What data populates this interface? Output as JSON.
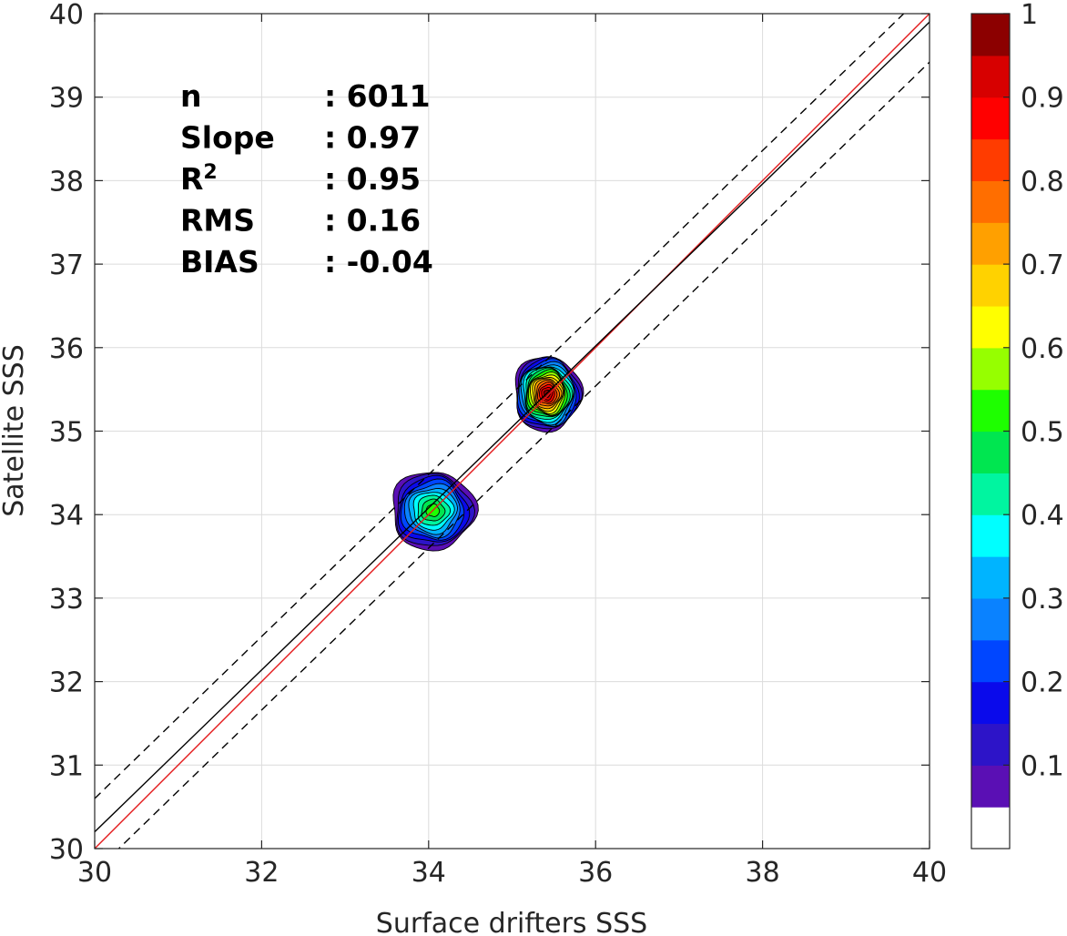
{
  "chart_data": {
    "type": "heatmap",
    "subtype": "scatter-density-contour",
    "title": "",
    "xlabel": "Surface drifters SSS",
    "ylabel": "Satellite SSS",
    "xlim": [
      30,
      40
    ],
    "ylim": [
      30,
      40
    ],
    "x_ticks": [
      "30",
      "32",
      "34",
      "36",
      "38",
      "40"
    ],
    "y_ticks": [
      "30",
      "31",
      "32",
      "33",
      "34",
      "35",
      "36",
      "37",
      "38",
      "39",
      "40"
    ],
    "grid": true,
    "stats": [
      {
        "label": "n",
        "value": ": 6011"
      },
      {
        "label": "Slope",
        "value": ": 0.97"
      },
      {
        "label": "R",
        "sup": "2",
        "value": ": 0.95"
      },
      {
        "label": "RMS",
        "value": ": 0.16"
      },
      {
        "label": "BIAS",
        "value": ": -0.04"
      }
    ],
    "lines": [
      {
        "role": "identity",
        "color": "#e41a1c",
        "style": "solid",
        "slope": 1.0,
        "intercept": 0.0
      },
      {
        "role": "fit",
        "color": "#000000",
        "style": "solid",
        "slope": 0.97,
        "intercept": 1.1
      },
      {
        "role": "fit-upper",
        "color": "#000000",
        "style": "dashed",
        "slope": 0.97,
        "intercept": 1.5
      },
      {
        "role": "fit-lower",
        "color": "#000000",
        "style": "dashed",
        "slope": 0.97,
        "intercept": 0.62
      }
    ],
    "clusters": [
      {
        "cx": 34.05,
        "cy": 34.05,
        "rx": 0.5,
        "ry": 0.47,
        "peak": 0.55
      },
      {
        "cx": 35.42,
        "cy": 35.45,
        "rx": 0.4,
        "ry": 0.45,
        "peak": 1.0
      }
    ],
    "colorbar": {
      "range": [
        0,
        1
      ],
      "ticks": [
        "0.1",
        "0.2",
        "0.3",
        "0.4",
        "0.5",
        "0.6",
        "0.7",
        "0.8",
        "0.9",
        "1"
      ],
      "colors": [
        "#ffffff",
        "#5a0fb4",
        "#2d14c8",
        "#0a0aeb",
        "#0046ff",
        "#0a82ff",
        "#00b4ff",
        "#00ffff",
        "#00f5a0",
        "#00e650",
        "#1eff00",
        "#96ff00",
        "#ffff00",
        "#ffd200",
        "#ffa000",
        "#ff6e00",
        "#ff3c00",
        "#ff0000",
        "#d70000",
        "#8c0000"
      ]
    }
  }
}
